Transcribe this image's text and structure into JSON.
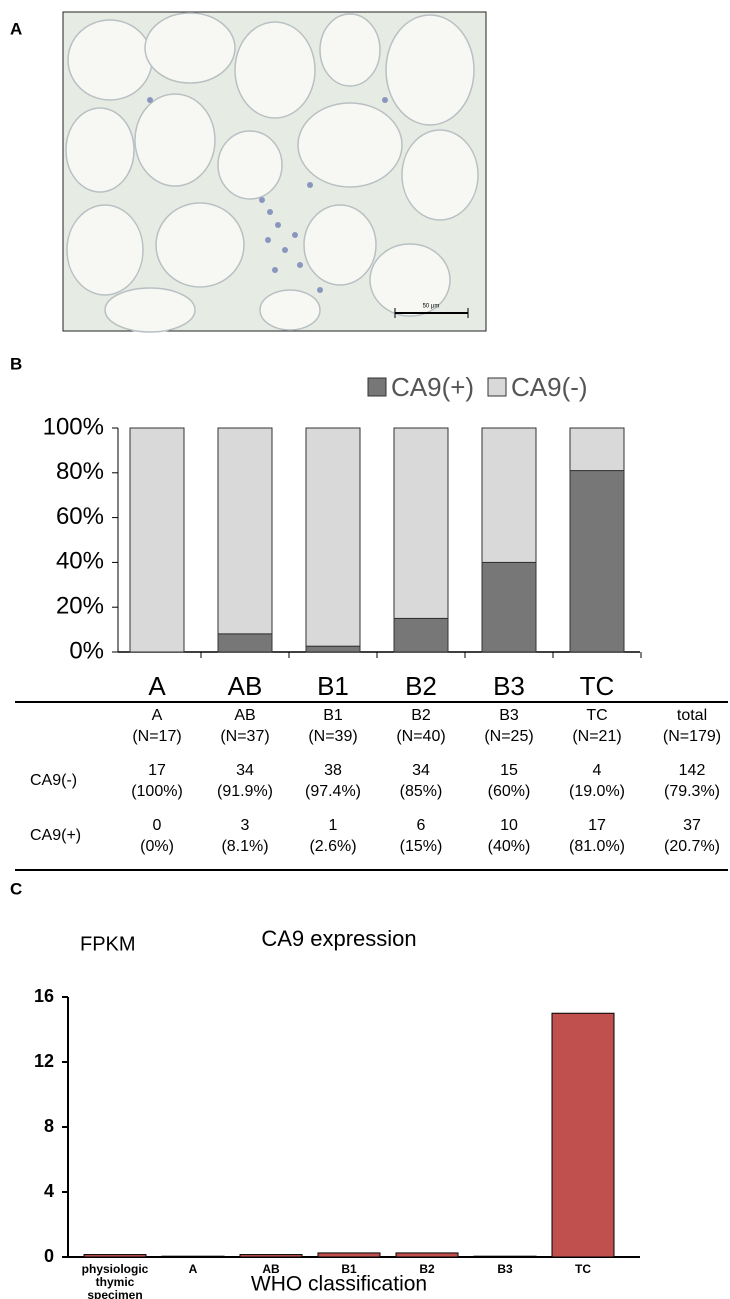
{
  "panels": {
    "a": {
      "label": "A",
      "scale_bar": "50 μm"
    },
    "b": {
      "label": "B"
    },
    "c": {
      "label": "C"
    }
  },
  "chart_data": [
    {
      "type": "bar",
      "stacked": true,
      "categories": [
        "A",
        "AB",
        "B1",
        "B2",
        "B3",
        "TC"
      ],
      "series": [
        {
          "name": "CA9(+)",
          "color": "#777777",
          "values": [
            0,
            8.1,
            2.6,
            15,
            40,
            81.0
          ]
        },
        {
          "name": "CA9(-)",
          "color": "#d9d9d9",
          "values": [
            100,
            91.9,
            97.4,
            85,
            60,
            19.0
          ]
        }
      ],
      "ylim": [
        0,
        100
      ],
      "yticks": [
        {
          "value": 0,
          "label": "0%"
        },
        {
          "value": 20,
          "label": "20%"
        },
        {
          "value": 40,
          "label": "40%"
        },
        {
          "value": 60,
          "label": "60%"
        },
        {
          "value": 80,
          "label": "80%"
        },
        {
          "value": 100,
          "label": "100%"
        }
      ],
      "legend": "top"
    },
    {
      "type": "bar",
      "title": "CA9 expression",
      "y_label": "FPKM",
      "x_label": "WHO classification",
      "categories": [
        "physiologic thymic specimen",
        "A",
        "AB",
        "B1",
        "B2",
        "B3",
        "TC"
      ],
      "values": [
        0.15,
        0.05,
        0.15,
        0.25,
        0.25,
        0.05,
        15.0
      ],
      "color": "#c0504d",
      "ylim": [
        0,
        16
      ],
      "yticks": [
        0,
        4,
        8,
        12,
        16
      ]
    }
  ],
  "table": {
    "columns": [
      {
        "name": "A",
        "n": "(N=17)"
      },
      {
        "name": "AB",
        "n": "(N=37)"
      },
      {
        "name": "B1",
        "n": "(N=39)"
      },
      {
        "name": "B2",
        "n": "(N=40)"
      },
      {
        "name": "B3",
        "n": "(N=25)"
      },
      {
        "name": "TC",
        "n": "(N=21)"
      },
      {
        "name": "total",
        "n": "(N=179)"
      }
    ],
    "rows": [
      {
        "label": "CA9(-)",
        "cells": [
          [
            "17",
            "(100%)"
          ],
          [
            "34",
            "(91.9%)"
          ],
          [
            "38",
            "(97.4%)"
          ],
          [
            "34",
            "(85%)"
          ],
          [
            "15",
            "(60%)"
          ],
          [
            "4",
            "(19.0%)"
          ],
          [
            "142",
            "(79.3%)"
          ]
        ]
      },
      {
        "label": "CA9(+)",
        "cells": [
          [
            "0",
            "(0%)"
          ],
          [
            "3",
            "(8.1%)"
          ],
          [
            "1",
            "(2.6%)"
          ],
          [
            "6",
            "(15%)"
          ],
          [
            "10",
            "(40%)"
          ],
          [
            "17",
            "(81.0%)"
          ],
          [
            "37",
            "(20.7%)"
          ]
        ]
      }
    ]
  }
}
